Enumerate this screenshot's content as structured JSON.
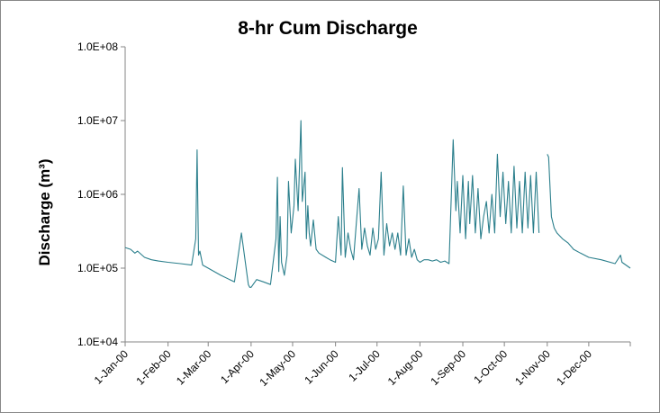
{
  "chart_data": {
    "type": "line",
    "title": "8-hr Cum Discharge",
    "xlabel": "",
    "ylabel": "Discharge (m³)",
    "yscale": "log",
    "ylim": [
      10000,
      100000000
    ],
    "xlim": [
      "2000-01-01",
      "2000-12-31"
    ],
    "grid": false,
    "legend": "none",
    "line_color": "#2b7f8c",
    "yticks": [
      "1.0E+04",
      "1.0E+05",
      "1.0E+06",
      "1.0E+07",
      "1.0E+08"
    ],
    "xticks": [
      {
        "date": "2000-01-01",
        "label": "1-Jan-00"
      },
      {
        "date": "2000-02-01",
        "label": "1-Feb-00"
      },
      {
        "date": "2000-03-01",
        "label": "1-Mar-00"
      },
      {
        "date": "2000-04-01",
        "label": "1-Apr-00"
      },
      {
        "date": "2000-05-01",
        "label": "1-May-00"
      },
      {
        "date": "2000-06-01",
        "label": "1-Jun-00"
      },
      {
        "date": "2000-07-01",
        "label": "1-Jul-00"
      },
      {
        "date": "2000-08-01",
        "label": "1-Aug-00"
      },
      {
        "date": "2000-09-01",
        "label": "1-Sep-00"
      },
      {
        "date": "2000-10-01",
        "label": "1-Oct-00"
      },
      {
        "date": "2000-11-01",
        "label": "1-Nov-00"
      },
      {
        "date": "2000-12-01",
        "label": "1-Dec-00"
      }
    ],
    "series": [
      {
        "x": [
          "2000-01-01",
          "2000-01-05",
          "2000-01-08",
          "2000-01-10",
          "2000-01-15",
          "2000-01-20",
          "2000-01-25",
          "2000-02-01",
          "2000-02-10",
          "2000-02-18",
          "2000-02-21",
          "2000-02-22",
          "2000-02-23",
          "2000-02-24",
          "2000-02-26",
          "2000-03-01",
          "2000-03-10",
          "2000-03-20",
          "2000-03-25",
          "2000-03-30",
          "2000-03-31",
          "2000-04-01",
          "2000-04-05",
          "2000-04-10",
          "2000-04-15",
          "2000-04-19",
          "2000-04-20",
          "2000-04-21",
          "2000-04-22",
          "2000-04-23",
          "2000-04-25",
          "2000-04-27",
          "2000-04-28",
          "2000-04-30",
          "2000-05-02",
          "2000-05-03",
          "2000-05-05",
          "2000-05-07",
          "2000-05-08",
          "2000-05-10",
          "2000-05-11",
          "2000-05-12",
          "2000-05-13",
          "2000-05-14",
          "2000-05-16",
          "2000-05-18",
          "2000-05-20",
          "2000-05-25",
          "2000-05-28",
          "2000-06-01",
          "2000-06-03",
          "2000-06-05",
          "2000-06-06",
          "2000-06-08",
          "2000-06-10",
          "2000-06-12",
          "2000-06-14",
          "2000-06-16",
          "2000-06-18",
          "2000-06-20",
          "2000-06-22",
          "2000-06-24",
          "2000-06-26",
          "2000-06-28",
          "2000-06-30",
          "2000-07-02",
          "2000-07-04",
          "2000-07-06",
          "2000-07-08",
          "2000-07-10",
          "2000-07-12",
          "2000-07-14",
          "2000-07-16",
          "2000-07-18",
          "2000-07-20",
          "2000-07-22",
          "2000-07-24",
          "2000-07-26",
          "2000-07-28",
          "2000-07-30",
          "2000-08-01",
          "2000-08-04",
          "2000-08-07",
          "2000-08-10",
          "2000-08-13",
          "2000-08-16",
          "2000-08-19",
          "2000-08-22",
          "2000-08-25",
          "2000-08-27",
          "2000-08-28",
          "2000-08-30",
          "2000-09-01",
          "2000-09-03",
          "2000-09-05",
          "2000-09-06",
          "2000-09-08",
          "2000-09-10",
          "2000-09-12",
          "2000-09-14",
          "2000-09-16",
          "2000-09-18",
          "2000-09-20",
          "2000-09-22",
          "2000-09-24",
          "2000-09-26",
          "2000-09-28",
          "2000-09-30",
          "2000-10-02",
          "2000-10-04",
          "2000-10-06",
          "2000-10-08",
          "2000-10-10",
          "2000-10-12",
          "2000-10-14",
          "2000-10-16",
          "2000-10-18",
          "2000-10-20",
          "2000-10-22",
          "2000-10-24",
          "2000-10-26",
          "2000-10-28",
          "2000-10-30",
          "2000-11-01",
          "2000-11-02",
          "2000-11-04",
          "2000-11-06",
          "2000-11-08",
          "2000-11-12",
          "2000-11-16",
          "2000-11-20",
          "2000-11-25",
          "2000-12-01",
          "2000-12-10",
          "2000-12-20",
          "2000-12-24",
          "2000-12-25",
          "2000-12-31"
        ],
        "y": [
          190000,
          180000,
          160000,
          170000,
          140000,
          130000,
          125000,
          120000,
          115000,
          110000,
          250000,
          4000000,
          150000,
          170000,
          110000,
          100000,
          80000,
          65000,
          300000,
          60000,
          55000,
          55000,
          70000,
          65000,
          60000,
          250000,
          1700000,
          90000,
          500000,
          120000,
          80000,
          150000,
          1500000,
          300000,
          700000,
          3000000,
          600000,
          10000000,
          800000,
          2000000,
          250000,
          700000,
          300000,
          200000,
          450000,
          180000,
          160000,
          140000,
          130000,
          120000,
          500000,
          150000,
          2300000,
          140000,
          300000,
          180000,
          130000,
          400000,
          1200000,
          180000,
          350000,
          200000,
          150000,
          350000,
          180000,
          250000,
          2000000,
          150000,
          400000,
          200000,
          300000,
          180000,
          300000,
          150000,
          1300000,
          150000,
          250000,
          140000,
          180000,
          130000,
          120000,
          130000,
          130000,
          125000,
          130000,
          120000,
          125000,
          115000,
          5500000,
          600000,
          1500000,
          300000,
          1800000,
          250000,
          1500000,
          400000,
          1800000,
          300000,
          1200000,
          250000,
          500000,
          800000,
          300000,
          1000000,
          300000,
          3500000,
          500000,
          2000000,
          400000,
          1500000,
          300000,
          2400000,
          350000,
          1500000,
          300000,
          2000000,
          350000,
          1800000,
          300000,
          2000000,
          300000,
          null,
          null,
          3500000,
          3200000,
          500000,
          350000,
          300000,
          250000,
          220000,
          180000,
          160000,
          140000,
          130000,
          115000,
          150000,
          120000,
          100000
        ]
      }
    ]
  }
}
